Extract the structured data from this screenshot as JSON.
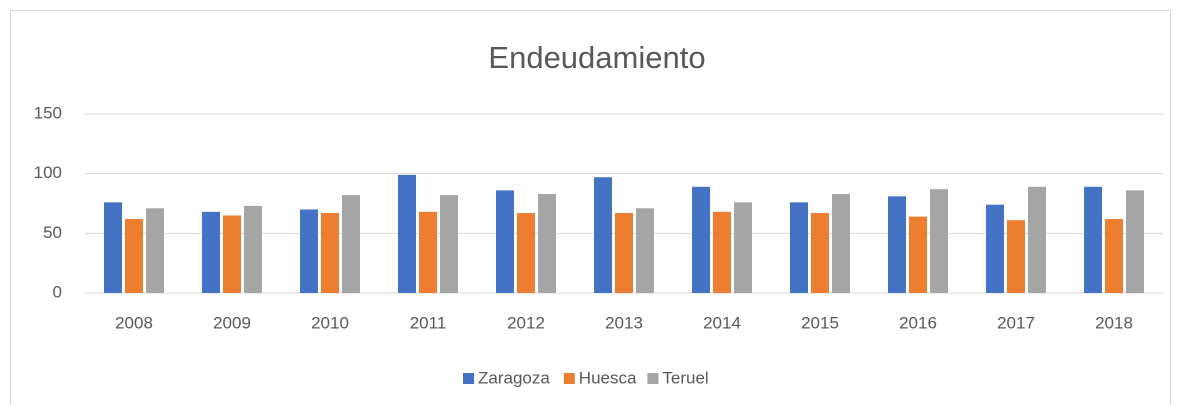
{
  "chart_data": {
    "type": "bar",
    "title": "Endeudamiento",
    "categories": [
      "2008",
      "2009",
      "2010",
      "2011",
      "2012",
      "2013",
      "2014",
      "2015",
      "2016",
      "2017",
      "2018"
    ],
    "series": [
      {
        "name": "Zaragoza",
        "color": "#4472c4",
        "values": [
          76,
          68,
          70,
          99,
          86,
          97,
          89,
          76,
          81,
          74,
          89
        ]
      },
      {
        "name": "Huesca",
        "color": "#ed7d31",
        "values": [
          62,
          65,
          67,
          68,
          67,
          67,
          68,
          67,
          64,
          61,
          62
        ]
      },
      {
        "name": "Teruel",
        "color": "#a5a5a5",
        "values": [
          71,
          73,
          82,
          82,
          83,
          71,
          76,
          83,
          87,
          89,
          86
        ]
      }
    ],
    "ylim": [
      0,
      150
    ],
    "yticks": [
      0,
      50,
      100,
      150
    ],
    "grid": true,
    "legend": "bottom"
  }
}
